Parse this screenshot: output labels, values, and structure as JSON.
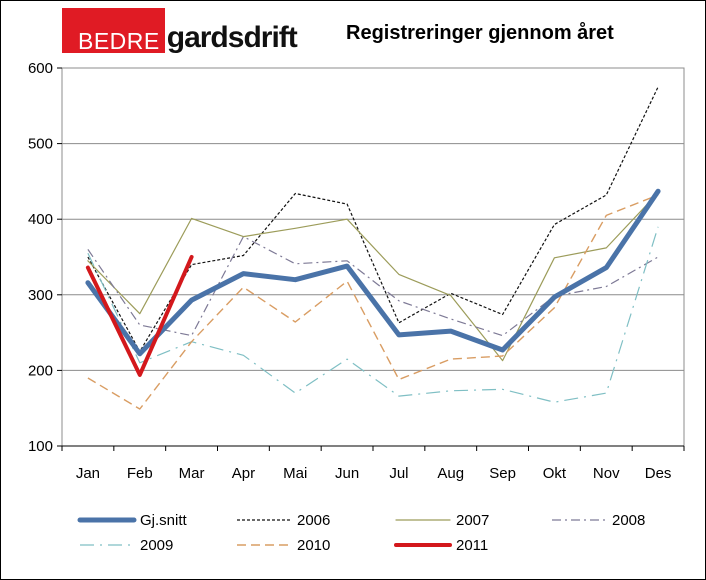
{
  "brand": {
    "logo_box": "BEDRE",
    "logo_word": "gardsdrift"
  },
  "colors": {
    "Gj.snitt": "#4a73a8",
    "2006": "#111111",
    "2007": "#9c9c5a",
    "2008": "#7e7a96",
    "2009": "#7fbfc4",
    "2010": "#d99d63",
    "2011": "#d3181c",
    "grid": "#8c8c8c",
    "logo_red": "#e01b24"
  },
  "chart_data": {
    "type": "line",
    "title": "Registreringer gjennom året",
    "xlabel": "",
    "ylabel": "",
    "ylim": [
      100,
      600
    ],
    "yticks": [
      100,
      200,
      300,
      400,
      500,
      600
    ],
    "grid": true,
    "legend_position": "bottom",
    "categories": [
      "Jan",
      "Feb",
      "Mar",
      "Apr",
      "Mai",
      "Jun",
      "Jul",
      "Aug",
      "Sep",
      "Okt",
      "Nov",
      "Des"
    ],
    "series": [
      {
        "name": "Gj.snitt",
        "style": "solid-thick",
        "values": [
          316,
          222,
          293,
          328,
          320,
          338,
          247,
          252,
          227,
          297,
          336,
          437
        ]
      },
      {
        "name": "2006",
        "style": "short-dash",
        "values": [
          350,
          225,
          340,
          352,
          434,
          420,
          263,
          302,
          274,
          393,
          432,
          575
        ]
      },
      {
        "name": "2007",
        "style": "solid-thin",
        "values": [
          345,
          275,
          401,
          377,
          388,
          400,
          327,
          299,
          213,
          349,
          362,
          435
        ]
      },
      {
        "name": "2008",
        "style": "dash-dot",
        "values": [
          360,
          260,
          246,
          377,
          341,
          345,
          292,
          268,
          246,
          298,
          311,
          350
        ]
      },
      {
        "name": "2009",
        "style": "long-dash-dot",
        "values": [
          355,
          210,
          238,
          220,
          170,
          215,
          166,
          173,
          175,
          158,
          170,
          390
        ]
      },
      {
        "name": "2010",
        "style": "long-dash",
        "values": [
          190,
          149,
          238,
          310,
          264,
          318,
          188,
          215,
          219,
          283,
          405,
          432
        ]
      },
      {
        "name": "2011",
        "style": "solid-thick",
        "values": [
          336,
          194,
          350,
          null,
          null,
          null,
          null,
          null,
          null,
          null,
          null,
          null
        ]
      }
    ]
  }
}
